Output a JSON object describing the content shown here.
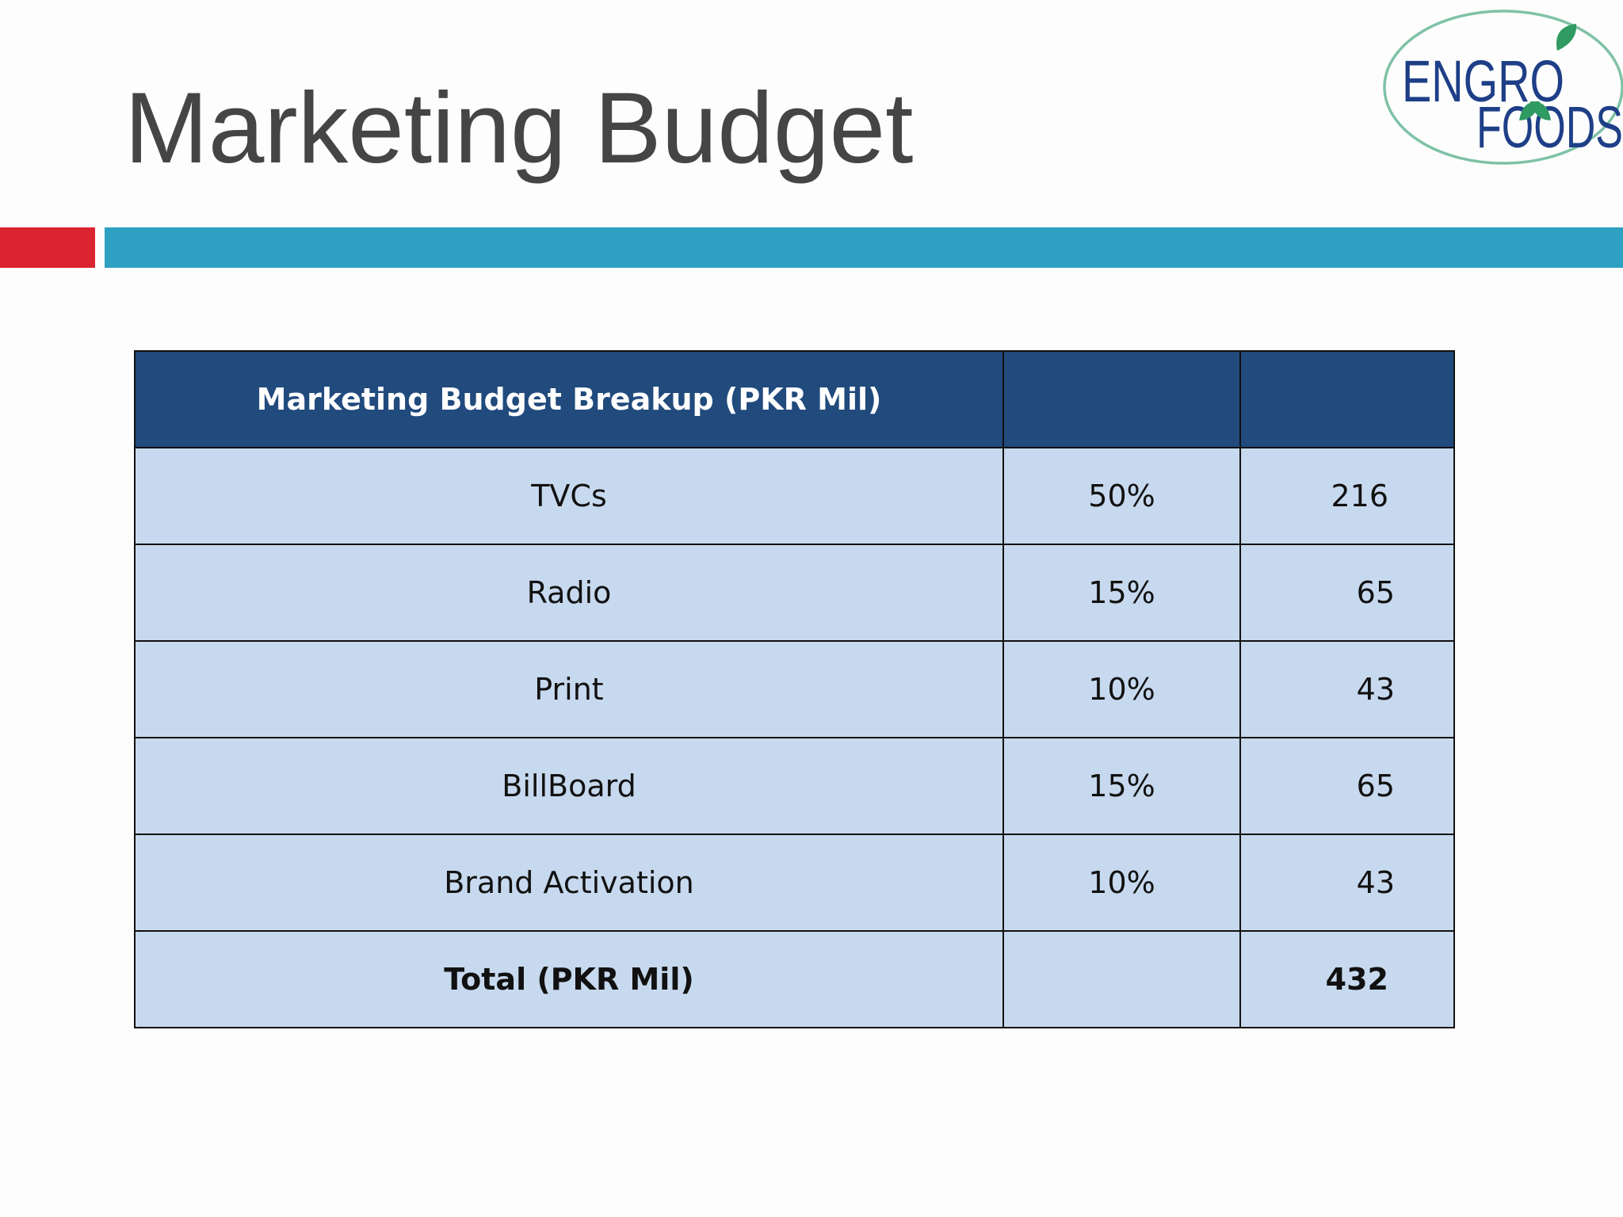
{
  "slide": {
    "title": "Marketing Budget"
  },
  "logo": {
    "line1": "ENGRO",
    "line2": "FOODS"
  },
  "colors": {
    "title": "#454545",
    "accent_red": "#dc2330",
    "accent_blue": "#2ea1c3",
    "table_header": "#214a7d",
    "table_row": "#c7d9ee",
    "logo_blue": "#1e3f87",
    "logo_green": "#2f9a62"
  },
  "table": {
    "header": {
      "label": "Marketing Budget Breakup (PKR Mil)",
      "pct": "",
      "amount": ""
    },
    "rows": [
      {
        "item": "TVCs",
        "pct": "50%",
        "amount": "216"
      },
      {
        "item": "Radio",
        "pct": "15%",
        "amount": "65"
      },
      {
        "item": "Print",
        "pct": "10%",
        "amount": "43"
      },
      {
        "item": "BillBoard",
        "pct": "15%",
        "amount": "65"
      },
      {
        "item": "Brand Activation",
        "pct": "10%",
        "amount": "43"
      }
    ],
    "total": {
      "item": "Total (PKR Mil)",
      "pct": "",
      "amount": "432"
    }
  }
}
